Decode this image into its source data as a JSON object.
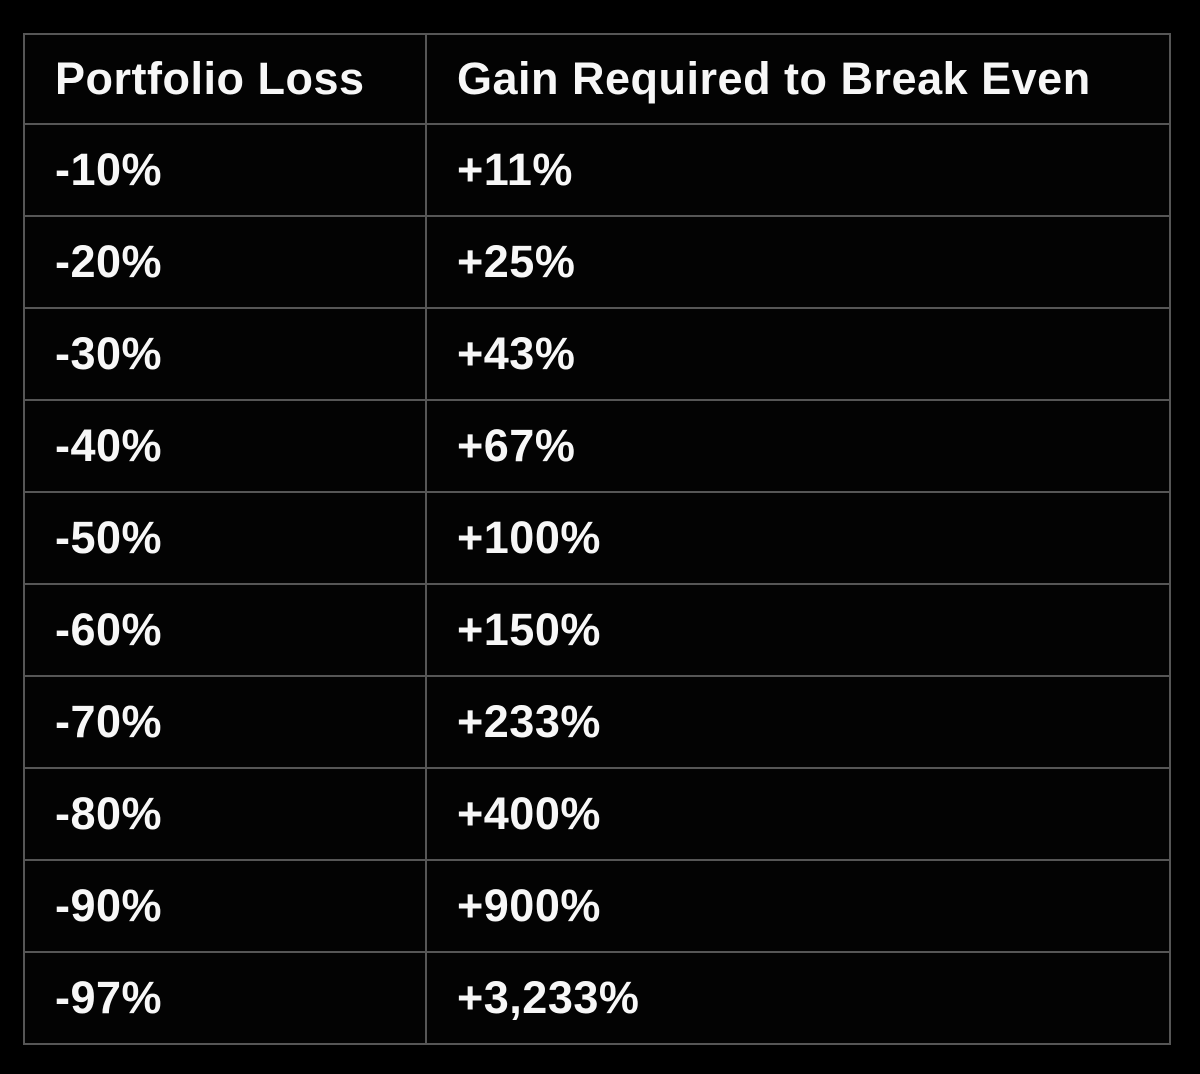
{
  "colors": {
    "page_background": "#000000",
    "cell_background": "#030303",
    "border": "#565656",
    "text": "#f7f7f7"
  },
  "chart_data": {
    "type": "table",
    "columns": [
      "Portfolio Loss",
      "Gain Required to Break Even"
    ],
    "rows": [
      [
        "-10%",
        "+11%"
      ],
      [
        "-20%",
        "+25%"
      ],
      [
        "-30%",
        "+43%"
      ],
      [
        "-40%",
        "+67%"
      ],
      [
        "-50%",
        "+100%"
      ],
      [
        "-60%",
        "+150%"
      ],
      [
        "-70%",
        "+233%"
      ],
      [
        "-80%",
        "+400%"
      ],
      [
        "-90%",
        "+900%"
      ],
      [
        "-97%",
        "+3,233%"
      ]
    ],
    "loss_values_pct": [
      -10,
      -20,
      -30,
      -40,
      -50,
      -60,
      -70,
      -80,
      -90,
      -97
    ],
    "gain_required_pct": [
      11,
      25,
      43,
      67,
      100,
      150,
      233,
      400,
      900,
      3233
    ],
    "layout": "two-column table, header row on top, white bold text on black, gray grid borders"
  }
}
